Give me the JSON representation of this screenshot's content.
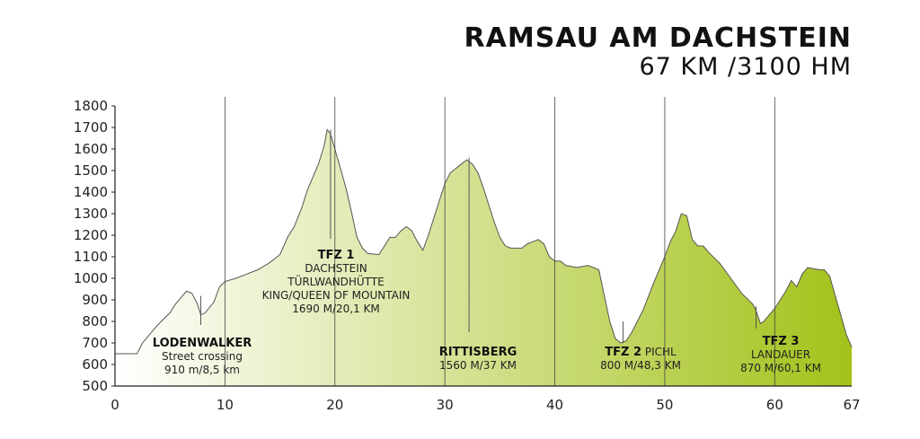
{
  "header": {
    "title": "RAMSAU AM DACHSTEIN",
    "subtitle": "67 KM /3100 HM"
  },
  "colors": {
    "fill_start": "#ffffff",
    "fill_end": "#a3c21a",
    "line": "#555555",
    "grid": "#444444"
  },
  "chart_data": {
    "type": "area",
    "xlim": [
      0,
      67
    ],
    "ylim": [
      500,
      1800
    ],
    "x_ticks": [
      0,
      10,
      20,
      30,
      40,
      50,
      60,
      67
    ],
    "y_ticks": [
      500,
      600,
      700,
      800,
      900,
      1000,
      1100,
      1200,
      1300,
      1400,
      1500,
      1600,
      1700,
      1800
    ],
    "grid": "vertical lines at 10, 20, 30, 40, 50, 60",
    "profile": [
      [
        0,
        650
      ],
      [
        2,
        650
      ],
      [
        2.5,
        700
      ],
      [
        3,
        730
      ],
      [
        3.5,
        760
      ],
      [
        4,
        790
      ],
      [
        5,
        840
      ],
      [
        5.5,
        880
      ],
      [
        6,
        910
      ],
      [
        6.5,
        940
      ],
      [
        7,
        930
      ],
      [
        7.5,
        880
      ],
      [
        7.8,
        830
      ],
      [
        8.2,
        840
      ],
      [
        9,
        890
      ],
      [
        9.5,
        960
      ],
      [
        10,
        985
      ],
      [
        11,
        1000
      ],
      [
        12,
        1020
      ],
      [
        13,
        1040
      ],
      [
        14,
        1070
      ],
      [
        15,
        1110
      ],
      [
        15.7,
        1190
      ],
      [
        16.3,
        1240
      ],
      [
        17,
        1330
      ],
      [
        17.5,
        1410
      ],
      [
        18,
        1470
      ],
      [
        18.5,
        1530
      ],
      [
        19,
        1610
      ],
      [
        19.3,
        1690
      ],
      [
        19.6,
        1670
      ],
      [
        20,
        1600
      ],
      [
        20.5,
        1510
      ],
      [
        21,
        1420
      ],
      [
        21.5,
        1310
      ],
      [
        22,
        1190
      ],
      [
        22.5,
        1140
      ],
      [
        23,
        1115
      ],
      [
        24,
        1110
      ],
      [
        24.5,
        1150
      ],
      [
        25,
        1190
      ],
      [
        25.5,
        1190
      ],
      [
        26,
        1220
      ],
      [
        26.5,
        1240
      ],
      [
        27,
        1220
      ],
      [
        27.5,
        1170
      ],
      [
        28,
        1130
      ],
      [
        28.5,
        1200
      ],
      [
        29,
        1280
      ],
      [
        29.5,
        1360
      ],
      [
        30,
        1440
      ],
      [
        30.5,
        1490
      ],
      [
        31,
        1510
      ],
      [
        31.5,
        1530
      ],
      [
        32,
        1550
      ],
      [
        32.5,
        1530
      ],
      [
        33,
        1490
      ],
      [
        33.5,
        1420
      ],
      [
        34,
        1340
      ],
      [
        34.5,
        1260
      ],
      [
        35,
        1190
      ],
      [
        35.5,
        1150
      ],
      [
        36,
        1140
      ],
      [
        37,
        1140
      ],
      [
        37.5,
        1160
      ],
      [
        38,
        1170
      ],
      [
        38.5,
        1180
      ],
      [
        39,
        1160
      ],
      [
        39.5,
        1100
      ],
      [
        40,
        1080
      ],
      [
        40.5,
        1080
      ],
      [
        41,
        1060
      ],
      [
        42,
        1050
      ],
      [
        43,
        1060
      ],
      [
        44,
        1040
      ],
      [
        44.5,
        920
      ],
      [
        45,
        800
      ],
      [
        45.5,
        720
      ],
      [
        46,
        700
      ],
      [
        46.5,
        710
      ],
      [
        47,
        750
      ],
      [
        48,
        850
      ],
      [
        49,
        980
      ],
      [
        50,
        1100
      ],
      [
        50.5,
        1170
      ],
      [
        51,
        1220
      ],
      [
        51.5,
        1300
      ],
      [
        52,
        1290
      ],
      [
        52.5,
        1180
      ],
      [
        53,
        1150
      ],
      [
        53.5,
        1150
      ],
      [
        54,
        1120
      ],
      [
        55,
        1070
      ],
      [
        56,
        1000
      ],
      [
        57,
        930
      ],
      [
        58,
        880
      ],
      [
        58.3,
        850
      ],
      [
        58.7,
        790
      ],
      [
        59,
        800
      ],
      [
        60,
        860
      ],
      [
        61,
        940
      ],
      [
        61.5,
        990
      ],
      [
        62,
        960
      ],
      [
        62.5,
        1020
      ],
      [
        63,
        1050
      ],
      [
        64,
        1040
      ],
      [
        64.5,
        1040
      ],
      [
        65,
        1010
      ],
      [
        65.5,
        920
      ],
      [
        66,
        830
      ],
      [
        66.5,
        740
      ],
      [
        67,
        680
      ],
      [
        67,
        500
      ],
      [
        0,
        500
      ]
    ],
    "annotations": [
      {
        "km": 7.8,
        "elev": 910,
        "title": "LODENWALKER",
        "lines": [
          "Street crossing",
          "910 m/8,5 km"
        ]
      },
      {
        "km": 19.6,
        "elev": 1690,
        "title": "TFZ 1",
        "lines": [
          "DACHSTEIN",
          "TÜRLWANDHÜTTE",
          "KING/QUEEN OF MOUNTAIN",
          "1690 M/20,1 KM"
        ]
      },
      {
        "km": 32.2,
        "elev": 1560,
        "title": "RITTISBERG",
        "lines": [
          "1560 M/37 KM"
        ]
      },
      {
        "km": 46.2,
        "elev": 800,
        "title": "TFZ 2",
        "title_suffix": "PICHL",
        "lines": [
          "800 M/48,3 KM"
        ]
      },
      {
        "km": 58.3,
        "elev": 870,
        "title": "TFZ 3",
        "lines": [
          "LANDAUER",
          "870 M/60,1 KM"
        ]
      }
    ]
  }
}
